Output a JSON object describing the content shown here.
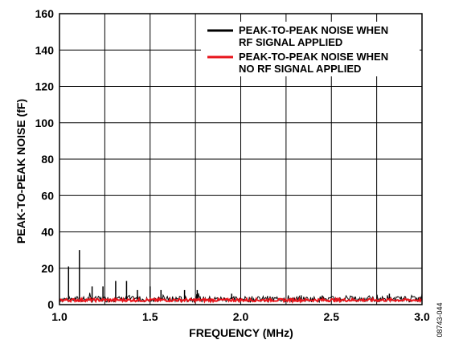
{
  "chart_data": {
    "type": "line",
    "title": "",
    "xlabel": "FREQUENCY (MHz)",
    "ylabel": "PEAK-TO-PEAK NOISE (fF)",
    "xlim": [
      1.0,
      3.0
    ],
    "ylim": [
      0,
      160
    ],
    "x_ticks": [
      "1.0",
      "1.5",
      "2.0",
      "2.5",
      "3.0"
    ],
    "y_ticks": [
      "0",
      "20",
      "40",
      "60",
      "80",
      "100",
      "120",
      "140",
      "160"
    ],
    "grid": true,
    "legend_position": "top-right",
    "series": [
      {
        "name": "PEAK-TO-PEAK NOISE WHEN RF SIGNAL APPLIED",
        "color": "#000000",
        "baseline": 3,
        "spikes": [
          {
            "x": 1.05,
            "y": 21
          },
          {
            "x": 1.11,
            "y": 30
          },
          {
            "x": 1.18,
            "y": 10
          },
          {
            "x": 1.24,
            "y": 10
          },
          {
            "x": 1.31,
            "y": 13
          },
          {
            "x": 1.37,
            "y": 13
          },
          {
            "x": 1.43,
            "y": 8
          },
          {
            "x": 1.5,
            "y": 10
          },
          {
            "x": 1.56,
            "y": 8
          },
          {
            "x": 1.69,
            "y": 8
          },
          {
            "x": 1.76,
            "y": 8
          },
          {
            "x": 1.95,
            "y": 6
          },
          {
            "x": 2.45,
            "y": 5
          },
          {
            "x": 2.82,
            "y": 6
          }
        ]
      },
      {
        "name": "PEAK-TO-PEAK NOISE WHEN NO RF SIGNAL APPLIED",
        "color": "#e8141b",
        "baseline": 2.5
      }
    ],
    "legend": [
      {
        "line1": "PEAK-TO-PEAK NOISE WHEN",
        "line2": "RF SIGNAL APPLIED",
        "color": "#000000"
      },
      {
        "line1": "PEAK-TO-PEAK NOISE WHEN",
        "line2": "NO RF SIGNAL APPLIED",
        "color": "#e8141b"
      }
    ]
  },
  "figure_id": "08743-044"
}
